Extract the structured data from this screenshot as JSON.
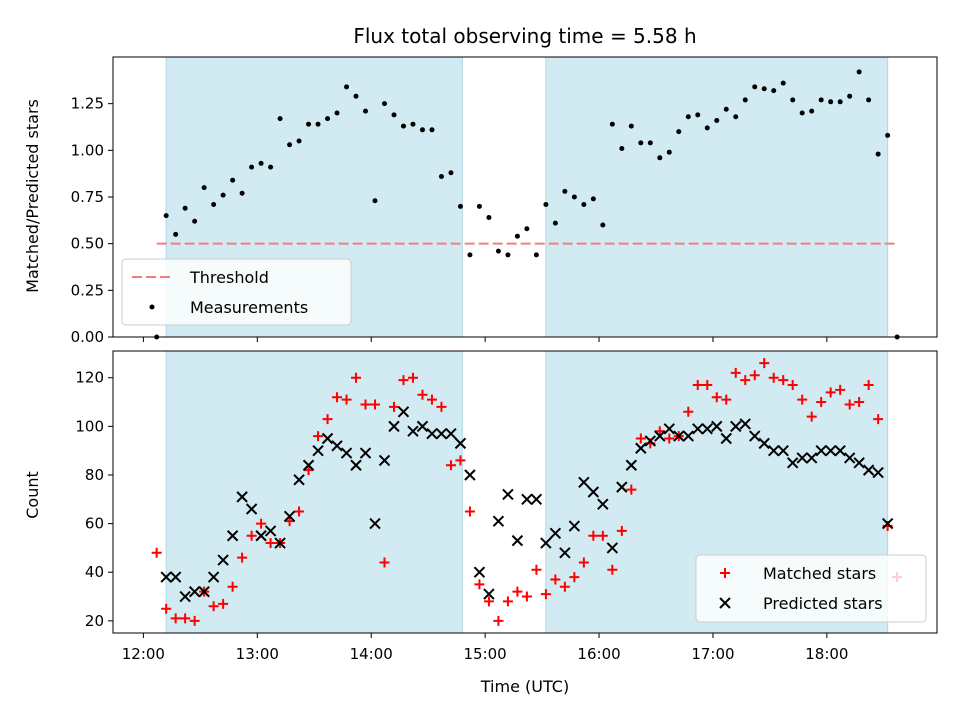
{
  "chart_data": [
    {
      "type": "scatter",
      "title": "Flux total observing time = 5.58 h",
      "xlabel": "",
      "ylabel": "Matched/Predicted stars",
      "ylim": [
        0,
        1.5
      ],
      "yticks": [
        "0.00",
        "0.25",
        "0.50",
        "0.75",
        "1.00",
        "1.25"
      ],
      "threshold": {
        "name": "Threshold",
        "value": 0.5,
        "x_range": [
          "12:07",
          "18:37"
        ],
        "color": "#f08080"
      },
      "shaded_intervals": [
        [
          "12:12",
          "14:48"
        ],
        [
          "15:32",
          "18:32"
        ]
      ],
      "shade_color": "#add8e6",
      "legend": {
        "position": "lower-left",
        "entries": [
          "Threshold",
          "Measurements"
        ]
      },
      "series": [
        {
          "name": "Measurements",
          "color": "#000000",
          "x": [
            "12:07",
            "12:12",
            "12:17",
            "12:22",
            "12:27",
            "12:32",
            "12:37",
            "12:42",
            "12:47",
            "12:52",
            "12:57",
            "13:02",
            "13:07",
            "13:12",
            "13:17",
            "13:22",
            "13:27",
            "13:32",
            "13:37",
            "13:42",
            "13:47",
            "13:52",
            "13:57",
            "14:02",
            "14:07",
            "14:12",
            "14:17",
            "14:22",
            "14:27",
            "14:32",
            "14:37",
            "14:42",
            "14:47",
            "14:52",
            "14:57",
            "15:02",
            "15:07",
            "15:12",
            "15:17",
            "15:22",
            "15:27",
            "15:32",
            "15:37",
            "15:42",
            "15:47",
            "15:52",
            "15:57",
            "16:02",
            "16:07",
            "16:12",
            "16:17",
            "16:22",
            "16:27",
            "16:32",
            "16:37",
            "16:42",
            "16:47",
            "16:52",
            "16:57",
            "17:02",
            "17:07",
            "17:12",
            "17:17",
            "17:22",
            "17:27",
            "17:32",
            "17:37",
            "17:42",
            "17:47",
            "17:52",
            "17:57",
            "18:02",
            "18:07",
            "18:12",
            "18:17",
            "18:22",
            "18:27",
            "18:32",
            "18:37"
          ],
          "y": [
            0.0,
            0.65,
            0.55,
            0.69,
            0.62,
            0.8,
            0.71,
            0.76,
            0.84,
            0.77,
            0.91,
            0.93,
            0.91,
            1.17,
            1.03,
            1.05,
            1.14,
            1.14,
            1.17,
            1.2,
            1.34,
            1.29,
            1.21,
            0.73,
            1.25,
            1.19,
            1.13,
            1.14,
            1.11,
            1.11,
            0.86,
            0.88,
            0.7,
            0.44,
            0.7,
            0.64,
            0.46,
            0.44,
            0.54,
            0.58,
            0.44,
            0.71,
            0.61,
            0.78,
            0.75,
            0.71,
            0.74,
            0.6,
            1.14,
            1.01,
            1.13,
            1.04,
            1.04,
            0.96,
            0.99,
            1.1,
            1.18,
            1.19,
            1.12,
            1.16,
            1.22,
            1.18,
            1.27,
            1.34,
            1.33,
            1.32,
            1.36,
            1.27,
            1.2,
            1.21,
            1.27,
            1.26,
            1.26,
            1.29,
            1.42,
            1.27,
            0.98,
            1.08,
            0.0
          ]
        }
      ]
    },
    {
      "type": "scatter",
      "title": "",
      "xlabel": "Time (UTC)",
      "ylabel": "Count",
      "ylim": [
        15,
        131
      ],
      "yticks": [
        "20",
        "40",
        "60",
        "80",
        "100",
        "120"
      ],
      "xticks": [
        "12:00",
        "13:00",
        "14:00",
        "15:00",
        "16:00",
        "17:00",
        "18:00"
      ],
      "xlim": [
        "11:44",
        "18:58"
      ],
      "shaded_intervals": [
        [
          "12:12",
          "14:48"
        ],
        [
          "15:32",
          "18:32"
        ]
      ],
      "shade_color": "#add8e6",
      "legend": {
        "position": "lower-right",
        "entries": [
          "Matched stars",
          "Predicted stars"
        ]
      },
      "series": [
        {
          "name": "Matched stars",
          "marker": "plus",
          "color": "#ff0000",
          "x": [
            "12:07",
            "12:12",
            "12:17",
            "12:22",
            "12:27",
            "12:32",
            "12:37",
            "12:42",
            "12:47",
            "12:52",
            "12:57",
            "13:02",
            "13:07",
            "13:12",
            "13:17",
            "13:22",
            "13:27",
            "13:32",
            "13:37",
            "13:42",
            "13:47",
            "13:52",
            "13:57",
            "14:02",
            "14:07",
            "14:12",
            "14:17",
            "14:22",
            "14:27",
            "14:32",
            "14:37",
            "14:42",
            "14:47",
            "14:52",
            "14:57",
            "15:02",
            "15:07",
            "15:12",
            "15:17",
            "15:22",
            "15:27",
            "15:32",
            "15:37",
            "15:42",
            "15:47",
            "15:52",
            "15:57",
            "16:02",
            "16:07",
            "16:12",
            "16:17",
            "16:22",
            "16:27",
            "16:32",
            "16:37",
            "16:42",
            "16:47",
            "16:52",
            "16:57",
            "17:02",
            "17:07",
            "17:12",
            "17:17",
            "17:22",
            "17:27",
            "17:32",
            "17:37",
            "17:42",
            "17:47",
            "17:52",
            "17:57",
            "18:02",
            "18:07",
            "18:12",
            "18:17",
            "18:22",
            "18:27",
            "18:32",
            "18:37"
          ],
          "y": [
            48,
            25,
            21,
            21,
            20,
            32,
            26,
            27,
            34,
            46,
            55,
            60,
            52,
            52,
            61,
            65,
            82,
            96,
            103,
            112,
            111,
            120,
            109,
            109,
            44,
            108,
            119,
            120,
            113,
            111,
            108,
            84,
            86,
            65,
            35,
            28,
            20,
            28,
            32,
            30,
            41,
            31,
            37,
            34,
            38,
            44,
            55,
            55,
            41,
            57,
            74,
            95,
            93,
            98,
            95,
            96,
            106,
            117,
            117,
            112,
            111,
            122,
            119,
            121,
            126,
            120,
            119,
            117,
            111,
            104,
            110,
            114,
            115,
            109,
            110,
            117,
            103,
            59,
            38
          ]
        },
        {
          "name": "Predicted stars",
          "marker": "x",
          "color": "#000000",
          "x": [
            "12:12",
            "12:17",
            "12:22",
            "12:27",
            "12:32",
            "12:37",
            "12:42",
            "12:47",
            "12:52",
            "12:57",
            "13:02",
            "13:07",
            "13:12",
            "13:17",
            "13:22",
            "13:27",
            "13:32",
            "13:37",
            "13:42",
            "13:47",
            "13:52",
            "13:57",
            "14:02",
            "14:07",
            "14:12",
            "14:17",
            "14:22",
            "14:27",
            "14:32",
            "14:37",
            "14:42",
            "14:47",
            "14:52",
            "14:57",
            "15:02",
            "15:07",
            "15:12",
            "15:17",
            "15:22",
            "15:27",
            "15:32",
            "15:37",
            "15:42",
            "15:47",
            "15:52",
            "15:57",
            "16:02",
            "16:07",
            "16:12",
            "16:17",
            "16:22",
            "16:27",
            "16:32",
            "16:37",
            "16:42",
            "16:47",
            "16:52",
            "16:57",
            "17:02",
            "17:07",
            "17:12",
            "17:17",
            "17:22",
            "17:27",
            "17:32",
            "17:37",
            "17:42",
            "17:47",
            "17:52",
            "17:57",
            "18:02",
            "18:07",
            "18:12",
            "18:17",
            "18:22",
            "18:27",
            "18:32"
          ],
          "y": [
            38,
            38,
            30,
            32,
            32,
            38,
            45,
            55,
            71,
            66,
            55,
            57,
            52,
            63,
            78,
            84,
            90,
            95,
            92,
            89,
            84,
            89,
            60,
            86,
            100,
            106,
            98,
            100,
            97,
            97,
            97,
            93,
            80,
            40,
            31,
            61,
            72,
            53,
            70,
            70,
            52,
            56,
            48,
            59,
            77,
            73,
            68,
            50,
            75,
            84,
            91,
            94,
            96,
            99,
            96,
            96,
            99,
            99,
            100,
            95,
            100,
            101,
            96,
            93,
            90,
            90,
            85,
            87,
            87,
            90,
            90,
            90,
            87,
            85,
            82,
            81,
            60
          ]
        }
      ]
    }
  ]
}
